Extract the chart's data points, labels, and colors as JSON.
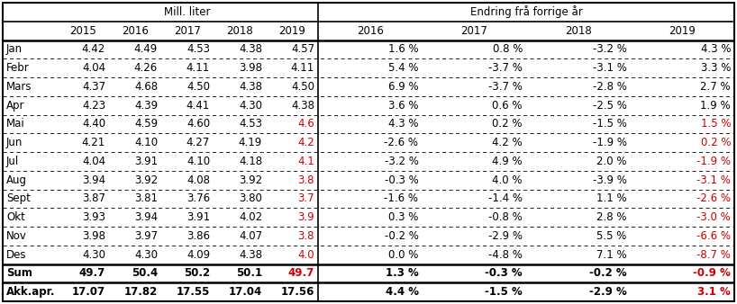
{
  "col_headers_mill": [
    "2015",
    "2016",
    "2017",
    "2018",
    "2019"
  ],
  "col_headers_endring": [
    "2016",
    "2017",
    "2018",
    "2019"
  ],
  "section_header_left": "Mill. liter",
  "section_header_right": "Endring frå forrige år",
  "rows": [
    {
      "month": "Jan",
      "mill": [
        "4.42",
        "4.49",
        "4.53",
        "4.38",
        "4.57"
      ],
      "endr": [
        "1.6 %",
        "0.8 %",
        "-3.2 %",
        "4.3 %"
      ],
      "red_mill": false,
      "red_endr": false
    },
    {
      "month": "Febr",
      "mill": [
        "4.04",
        "4.26",
        "4.11",
        "3.98",
        "4.11"
      ],
      "endr": [
        "5.4 %",
        "-3.7 %",
        "-3.1 %",
        "3.3 %"
      ],
      "red_mill": false,
      "red_endr": false
    },
    {
      "month": "Mars",
      "mill": [
        "4.37",
        "4.68",
        "4.50",
        "4.38",
        "4.50"
      ],
      "endr": [
        "6.9 %",
        "-3.7 %",
        "-2.8 %",
        "2.7 %"
      ],
      "red_mill": false,
      "red_endr": false
    },
    {
      "month": "Apr",
      "mill": [
        "4.23",
        "4.39",
        "4.41",
        "4.30",
        "4.38"
      ],
      "endr": [
        "3.6 %",
        "0.6 %",
        "-2.5 %",
        "1.9 %"
      ],
      "red_mill": false,
      "red_endr": false
    },
    {
      "month": "Mai",
      "mill": [
        "4.40",
        "4.59",
        "4.60",
        "4.53",
        "4.6"
      ],
      "endr": [
        "4.3 %",
        "0.2 %",
        "-1.5 %",
        "1.5 %"
      ],
      "red_mill": true,
      "red_endr": true
    },
    {
      "month": "Jun",
      "mill": [
        "4.21",
        "4.10",
        "4.27",
        "4.19",
        "4.2"
      ],
      "endr": [
        "-2.6 %",
        "4.2 %",
        "-1.9 %",
        "0.2 %"
      ],
      "red_mill": true,
      "red_endr": true
    },
    {
      "month": "Jul",
      "mill": [
        "4.04",
        "3.91",
        "4.10",
        "4.18",
        "4.1"
      ],
      "endr": [
        "-3.2 %",
        "4.9 %",
        "2.0 %",
        "-1.9 %"
      ],
      "red_mill": true,
      "red_endr": true
    },
    {
      "month": "Aug",
      "mill": [
        "3.94",
        "3.92",
        "4.08",
        "3.92",
        "3.8"
      ],
      "endr": [
        "-0.3 %",
        "4.0 %",
        "-3.9 %",
        "-3.1 %"
      ],
      "red_mill": true,
      "red_endr": true
    },
    {
      "month": "Sept",
      "mill": [
        "3.87",
        "3.81",
        "3.76",
        "3.80",
        "3.7"
      ],
      "endr": [
        "-1.6 %",
        "-1.4 %",
        "1.1 %",
        "-2.6 %"
      ],
      "red_mill": true,
      "red_endr": true
    },
    {
      "month": "Okt",
      "mill": [
        "3.93",
        "3.94",
        "3.91",
        "4.02",
        "3.9"
      ],
      "endr": [
        "0.3 %",
        "-0.8 %",
        "2.8 %",
        "-3.0 %"
      ],
      "red_mill": true,
      "red_endr": true
    },
    {
      "month": "Nov",
      "mill": [
        "3.98",
        "3.97",
        "3.86",
        "4.07",
        "3.8"
      ],
      "endr": [
        "-0.2 %",
        "-2.9 %",
        "5.5 %",
        "-6.6 %"
      ],
      "red_mill": true,
      "red_endr": true
    },
    {
      "month": "Des",
      "mill": [
        "4.30",
        "4.30",
        "4.09",
        "4.38",
        "4.0"
      ],
      "endr": [
        "0.0 %",
        "-4.8 %",
        "7.1 %",
        "-8.7 %"
      ],
      "red_mill": true,
      "red_endr": true
    }
  ],
  "sum_row": {
    "month": "Sum",
    "mill": [
      "49.7",
      "50.4",
      "50.2",
      "50.1",
      "49.7"
    ],
    "endr": [
      "1.3 %",
      "-0.3 %",
      "-0.2 %",
      "-0.9 %"
    ],
    "red_mill": true,
    "red_endr": true
  },
  "akk_row": {
    "month": "Akk.apr.",
    "mill": [
      "17.07",
      "17.82",
      "17.55",
      "17.04",
      "17.56"
    ],
    "endr": [
      "4.4 %",
      "-1.5 %",
      "-2.9 %",
      "3.1 %"
    ],
    "red_mill": false,
    "red_endr": true
  },
  "bg_color": "#ffffff",
  "text_color": "#000000",
  "red_color": "#cc0000",
  "figsize": [
    8.18,
    3.38
  ],
  "dpi": 100
}
